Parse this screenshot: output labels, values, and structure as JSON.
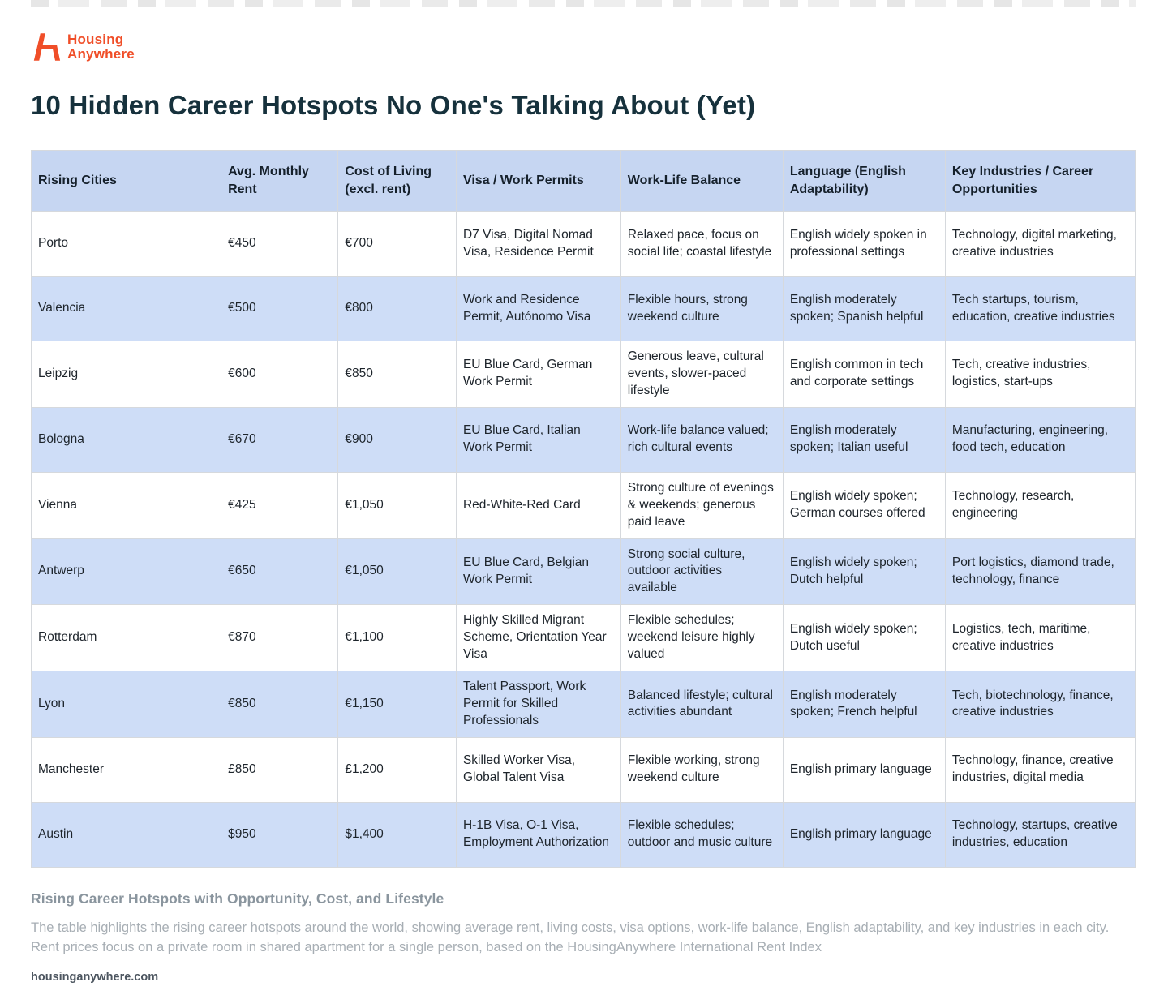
{
  "logo": {
    "line1": "Housing",
    "line2": "Anywhere",
    "brand_color": "#F04E28"
  },
  "chart_data": {
    "type": "table",
    "title": "10 Hidden Career Hotspots No One's Talking About (Yet)",
    "columns": [
      "Rising Cities",
      "Avg. Monthly Rent",
      "Cost of Living (excl. rent)",
      "Visa / Work Permits",
      "Work-Life Balance",
      "Language (English Adaptability)",
      "Key Industries / Career Opportunities"
    ],
    "rows": [
      [
        "Porto",
        "€450",
        "€700",
        "D7 Visa, Digital Nomad Visa, Residence Permit",
        "Relaxed pace, focus on social life; coastal lifestyle",
        "English widely spoken in professional settings",
        "Technology, digital marketing, creative industries"
      ],
      [
        "Valencia",
        "€500",
        "€800",
        "Work and Residence Permit, Autónomo Visa",
        "Flexible hours, strong weekend culture",
        "English moderately spoken; Spanish helpful",
        "Tech startups, tourism, education, creative industries"
      ],
      [
        "Leipzig",
        "€600",
        "€850",
        "EU Blue Card, German Work Permit",
        "Generous leave, cultural events, slower-paced lifestyle",
        "English common in tech and corporate settings",
        "Tech, creative industries, logistics, start-ups"
      ],
      [
        "Bologna",
        "€670",
        "€900",
        "EU Blue Card, Italian Work Permit",
        "Work-life balance valued; rich cultural events",
        "English moderately spoken; Italian useful",
        "Manufacturing, engineering, food tech, education"
      ],
      [
        "Vienna",
        "€425",
        "€1,050",
        "Red-White-Red Card",
        "Strong culture of evenings & weekends; generous paid leave",
        "English widely spoken; German courses offered",
        "Technology, research, engineering"
      ],
      [
        "Antwerp",
        "€650",
        "€1,050",
        "EU Blue Card, Belgian Work Permit",
        "Strong social culture, outdoor activities available",
        "English widely spoken; Dutch helpful",
        "Port logistics, diamond trade, technology, finance"
      ],
      [
        "Rotterdam",
        "€870",
        "€1,100",
        "Highly Skilled Migrant Scheme, Orientation Year Visa",
        "Flexible schedules; weekend leisure highly valued",
        "English widely spoken; Dutch useful",
        "Logistics, tech, maritime, creative industries"
      ],
      [
        "Lyon",
        "€850",
        "€1,150",
        "Talent Passport, Work Permit for Skilled Professionals",
        "Balanced lifestyle; cultural activities abundant",
        "English moderately spoken; French helpful",
        "Tech, biotechnology, finance, creative industries"
      ],
      [
        "Manchester",
        "£850",
        "£1,200",
        "Skilled Worker Visa, Global Talent Visa",
        "Flexible working, strong weekend culture",
        "English primary language",
        "Technology, finance, creative industries, digital media"
      ],
      [
        "Austin",
        "$950",
        "$1,400",
        "H-1B Visa, O-1 Visa, Employment Authorization",
        "Flexible schedules; outdoor and music culture",
        "English primary language",
        "Technology, startups, creative industries, education"
      ]
    ],
    "legend_position": "none",
    "grid": true,
    "style": {
      "header_bg": "#c6d6f2",
      "stripe_bg": "#ceddf7",
      "title_color": "#16313C"
    }
  },
  "footer": {
    "heading": "Rising Career Hotspots with Opportunity, Cost, and Lifestyle",
    "description": "The table highlights the rising career hotspots around the world, showing average rent, living costs, visa options, work-life balance, English adaptability, and key industries in each city. Rent prices focus on a private room in shared apartment for a single person, based on the HousingAnywhere International Rent Index",
    "source": "housinganywhere.com"
  }
}
